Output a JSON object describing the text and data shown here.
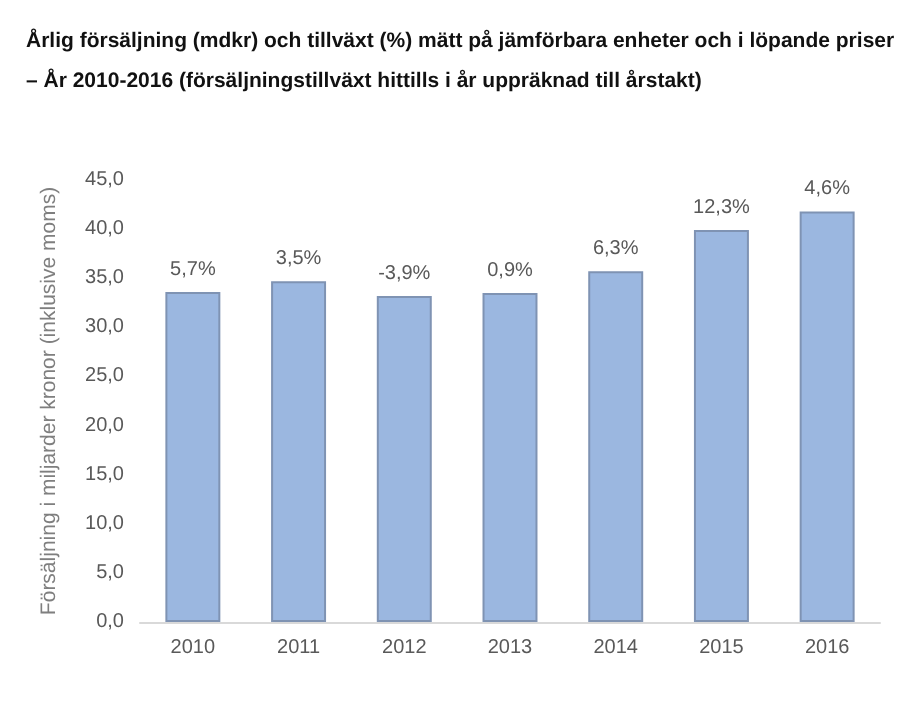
{
  "chart_data": {
    "type": "bar",
    "title": "Årlig försäljning (mdkr) och tillväxt (%) mätt på jämförbara enheter och i löpande priser",
    "subtitle": "– År 2010-2016 (försäljningstillväxt hittills i år uppräknad till årstakt)",
    "ylabel": "Försäljning i miljarder kronor (inklusive moms)",
    "categories": [
      "2010",
      "2011",
      "2012",
      "2013",
      "2014",
      "2015",
      "2016"
    ],
    "values": [
      33.6,
      34.7,
      33.2,
      33.5,
      35.7,
      39.9,
      41.8
    ],
    "color": "#9bb7e0",
    "ylim": [
      0,
      45
    ],
    "yticks": [
      {
        "value": 0,
        "label": "0,0"
      },
      {
        "value": 5,
        "label": "5,0"
      },
      {
        "value": 10,
        "label": "10,0"
      },
      {
        "value": 15,
        "label": "15,0"
      },
      {
        "value": 20,
        "label": "20,0"
      },
      {
        "value": 25,
        "label": "25,0"
      },
      {
        "value": 30,
        "label": "30,0"
      },
      {
        "value": 35,
        "label": "35,0"
      },
      {
        "value": 40,
        "label": "40,0"
      },
      {
        "value": 45,
        "label": "45,0"
      }
    ],
    "grid": false,
    "annotations": [
      {
        "text": "5,7%",
        "x": "2010",
        "y": 33.6
      },
      {
        "text": "3,5%",
        "x": "2011",
        "y": 34.7
      },
      {
        "text": "-3,9%",
        "x": "2012",
        "y": 33.2
      },
      {
        "text": "0,9%",
        "x": "2013",
        "y": 33.5
      },
      {
        "text": "6,3%",
        "x": "2014",
        "y": 35.7
      },
      {
        "text": "12,3%",
        "x": "2015",
        "y": 39.9
      },
      {
        "text": "4,6%",
        "x": "2016",
        "y": 41.8
      }
    ]
  }
}
